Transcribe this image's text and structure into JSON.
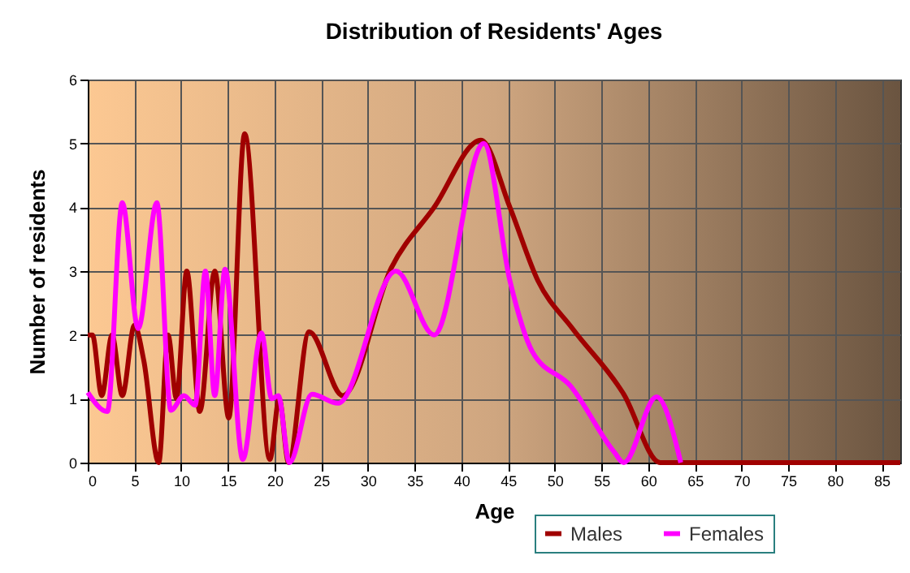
{
  "chart_data": {
    "type": "line",
    "title": "Distribution of Residents' Ages",
    "xlabel": "Age",
    "ylabel": "Number of residents",
    "xlim": [
      0,
      87
    ],
    "xticks": [
      0,
      5,
      10,
      15,
      20,
      25,
      30,
      35,
      40,
      45,
      50,
      55,
      60,
      65,
      70,
      75,
      80,
      85
    ],
    "ylim": [
      0,
      6
    ],
    "yticks": [
      0,
      1,
      2,
      3,
      4,
      5,
      6
    ],
    "grid": true,
    "legend": "bottom right",
    "marker": "none",
    "line_style": "solid",
    "series": [
      {
        "name": "Males",
        "color": "#a00000",
        "x": [
          0,
          0.5,
          1.5,
          2.6,
          3.7,
          5,
          6,
          7.6,
          8.6,
          9.5,
          10.6,
          12,
          13.6,
          15.1,
          16.8,
          19.5,
          20.5,
          21.5,
          23.7,
          27.3,
          32.5,
          37.1,
          42.1,
          45.2,
          48.2,
          51.9,
          57.4,
          61.3,
          65,
          87
        ],
        "values": [
          2,
          2,
          1.05,
          2,
          1.05,
          2.15,
          1.6,
          0,
          2,
          1,
          3,
          0.8,
          3,
          0.7,
          5.15,
          0.05,
          1,
          0,
          2.05,
          1.05,
          3.05,
          4,
          5.05,
          4,
          2.85,
          2.1,
          1.07,
          0,
          0,
          0
        ]
      },
      {
        "name": "Females",
        "color": "#ff00ff",
        "x": [
          0,
          2.1,
          3.7,
          5.4,
          7.4,
          8.9,
          10.3,
          11.5,
          12.6,
          13.6,
          14.7,
          16.6,
          18.6,
          19.7,
          20.4,
          21.6,
          24,
          26.8,
          33,
          37.1,
          42.4,
          45.2,
          47.6,
          51.7,
          56.3,
          57.4,
          60.9,
          63.5
        ],
        "values": [
          1.1,
          0.8,
          4.07,
          2.1,
          4.07,
          0.82,
          1.05,
          0.9,
          3,
          1.05,
          3.03,
          0.05,
          2.03,
          1,
          1.05,
          0,
          1.07,
          0.93,
          3,
          2,
          5,
          2.85,
          1.74,
          1.2,
          0.18,
          0,
          1.03,
          0
        ]
      }
    ]
  }
}
